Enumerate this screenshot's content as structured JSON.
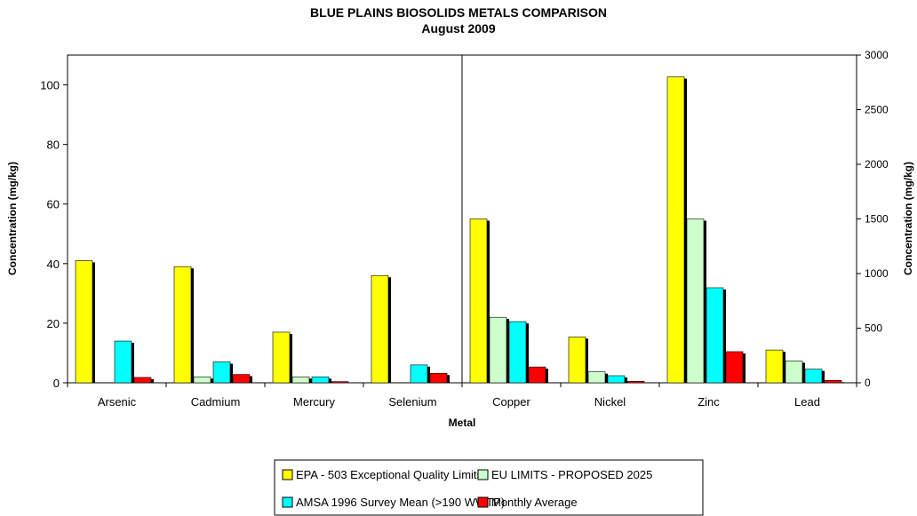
{
  "chart_data": {
    "type": "bar",
    "title": "BLUE PLAINS BIOSOLIDS METALS COMPARISON",
    "subtitle": "August  2009",
    "xlabel": "Metal",
    "ylabel_left": "Concentration (mg/kg)",
    "ylabel_right": "Concentration (mg/kg)",
    "categories": [
      "Arsenic",
      "Cadmium",
      "Mercury",
      "Selenium",
      "Copper",
      "Nickel",
      "Zinc",
      "Lead"
    ],
    "left_axis": {
      "min": 0,
      "max": 110,
      "ticks": [
        0,
        20,
        40,
        60,
        80,
        100
      ],
      "categories": [
        "Arsenic",
        "Cadmium",
        "Mercury",
        "Selenium"
      ]
    },
    "right_axis": {
      "min": 0,
      "max": 3000,
      "ticks": [
        0,
        500,
        1000,
        1500,
        2000,
        2500,
        3000
      ],
      "categories": [
        "Copper",
        "Nickel",
        "Zinc",
        "Lead"
      ]
    },
    "series": [
      {
        "name": "EPA - 503 Exceptional Quality Limits",
        "color": "#ffff00",
        "values": [
          41,
          39,
          17,
          36,
          1500,
          420,
          2800,
          300
        ]
      },
      {
        "name": "EU LIMITS - PROPOSED 2025",
        "color": "#ccffcc",
        "values": [
          0,
          2,
          2,
          0,
          600,
          100,
          1500,
          200
        ]
      },
      {
        "name": "AMSA 1996 Survey Mean (>190 WWTP)",
        "color": "#00ffff",
        "values": [
          14,
          7,
          2,
          6,
          560,
          65,
          870,
          125
        ]
      },
      {
        "name": "Monthly Average",
        "color": "#ff0000",
        "values": [
          1.8,
          2.8,
          0.4,
          3.2,
          145,
          14,
          285,
          22
        ]
      }
    ],
    "grid": false,
    "legend_position": "bottom"
  }
}
